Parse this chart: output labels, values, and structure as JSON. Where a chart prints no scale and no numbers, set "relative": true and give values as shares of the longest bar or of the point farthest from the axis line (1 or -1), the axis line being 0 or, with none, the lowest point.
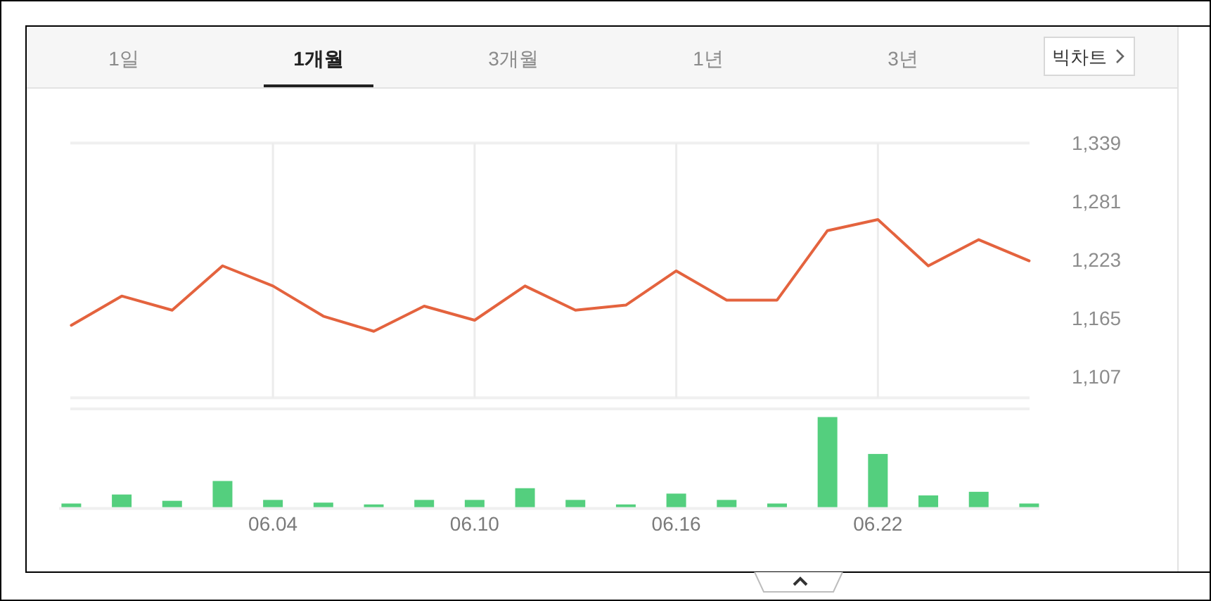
{
  "chart_data": [
    {
      "type": "other",
      "annotations": [
        "1일",
        "**1개월**",
        "3개월",
        "1년",
        "3년",
        "빅차트"
      ]
    },
    {
      "type": "line",
      "categories": [
        null,
        null,
        null,
        null,
        "06.04",
        null,
        null,
        null,
        "06.10",
        null,
        null,
        null,
        "06.16",
        null,
        null,
        null,
        "06.22",
        null,
        null,
        null
      ],
      "values": [
        1158,
        1187,
        1173,
        1217,
        1197,
        1167,
        1152,
        1177,
        1163,
        1197,
        1173,
        1178,
        1212,
        1183,
        1183,
        1252,
        1263,
        1217,
        1243,
        1222
      ],
      "color": "#e4633e",
      "ylim": [
        1086,
        1339
      ],
      "yticks": [
        {
          "value": 1107,
          "label": "1,107"
        },
        {
          "value": 1165,
          "label": "1,165"
        },
        {
          "value": 1223,
          "label": "1,223"
        },
        {
          "value": 1281,
          "label": "1,281"
        },
        {
          "value": 1339,
          "label": "1,339"
        }
      ],
      "grid": "x",
      "tick_labels": "y"
    },
    {
      "type": "bar",
      "categories": [
        null,
        null,
        null,
        null,
        "06.04",
        null,
        null,
        null,
        "06.10",
        null,
        null,
        null,
        "06.16",
        null,
        null,
        null,
        "06.22",
        null,
        null,
        null
      ],
      "values": [
        0.04,
        0.14,
        0.07,
        0.29,
        0.08,
        0.05,
        0.03,
        0.08,
        0.08,
        0.21,
        0.08,
        0.03,
        0.15,
        0.08,
        0.04,
        1,
        0.59,
        0.13,
        0.17,
        0.04
      ],
      "color": "#54cf7e",
      "relative": true,
      "tick_labels": "x"
    }
  ]
}
